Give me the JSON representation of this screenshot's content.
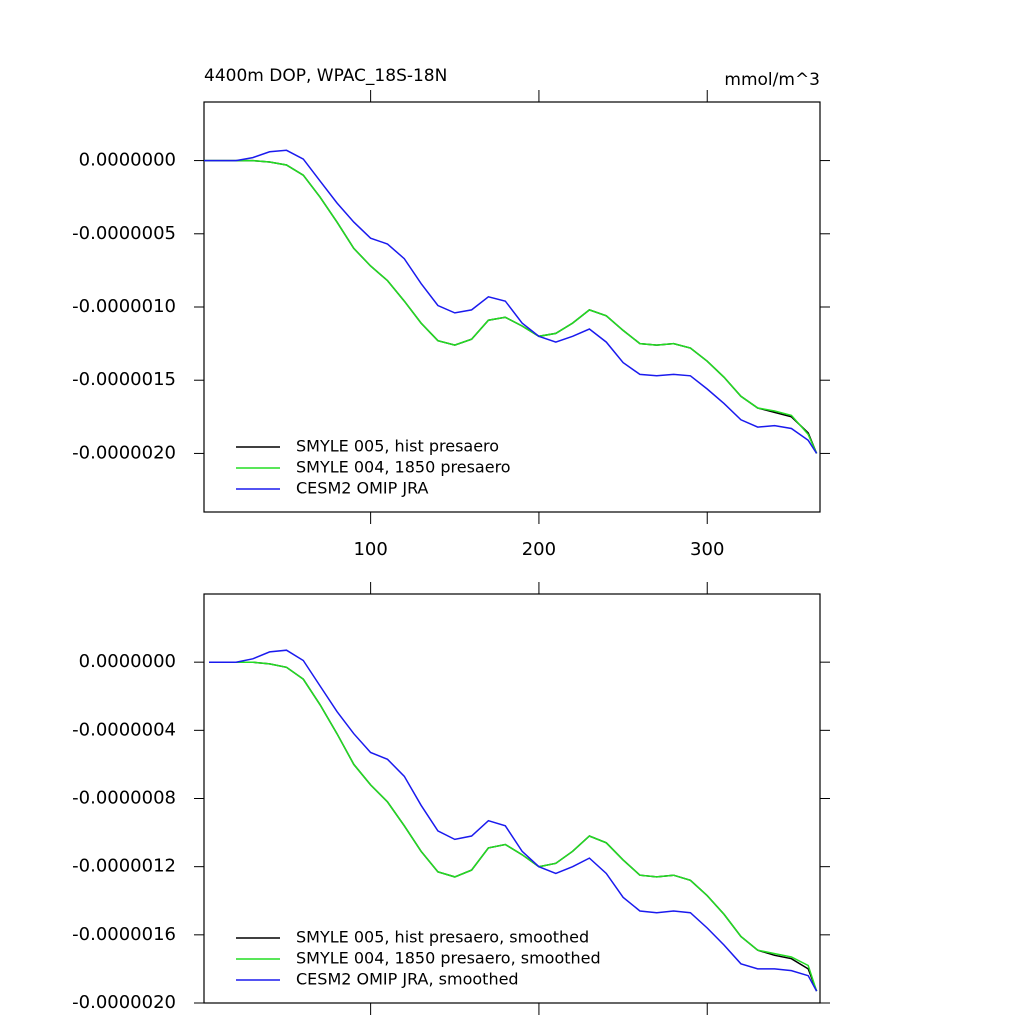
{
  "chart_data": [
    {
      "type": "line",
      "title": "4400m DOP, WPAC_18S-18N",
      "unit_label": "mmol/m^3",
      "x": [
        1,
        20,
        30,
        40,
        50,
        60,
        70,
        80,
        90,
        100,
        110,
        120,
        130,
        140,
        150,
        160,
        170,
        180,
        190,
        200,
        210,
        220,
        230,
        240,
        250,
        260,
        270,
        280,
        290,
        300,
        310,
        320,
        330,
        340,
        350,
        360,
        365
      ],
      "series": [
        {
          "name": "SMYLE 005, hist presaero",
          "color": "#000000",
          "values": [
            0,
            0,
            0,
            -1e-08,
            -3e-08,
            -1e-07,
            -2.5e-07,
            -4.2e-07,
            -6e-07,
            -7.2e-07,
            -8.2e-07,
            -9.6e-07,
            -1.11e-06,
            -1.23e-06,
            -1.26e-06,
            -1.22e-06,
            -1.09e-06,
            -1.07e-06,
            -1.13e-06,
            -1.2e-06,
            -1.18e-06,
            -1.11e-06,
            -1.02e-06,
            -1.06e-06,
            -1.16e-06,
            -1.25e-06,
            -1.26e-06,
            -1.25e-06,
            -1.28e-06,
            -1.37e-06,
            -1.48e-06,
            -1.61e-06,
            -1.69e-06,
            -1.72e-06,
            -1.75e-06,
            -1.86e-06,
            -2e-06
          ]
        },
        {
          "name": "SMYLE 004, 1850 presaero",
          "color": "#22dd22",
          "values": [
            0,
            0,
            0,
            -1e-08,
            -3e-08,
            -1e-07,
            -2.5e-07,
            -4.2e-07,
            -6e-07,
            -7.2e-07,
            -8.2e-07,
            -9.6e-07,
            -1.11e-06,
            -1.23e-06,
            -1.26e-06,
            -1.22e-06,
            -1.09e-06,
            -1.07e-06,
            -1.13e-06,
            -1.2e-06,
            -1.18e-06,
            -1.11e-06,
            -1.02e-06,
            -1.06e-06,
            -1.16e-06,
            -1.25e-06,
            -1.26e-06,
            -1.25e-06,
            -1.28e-06,
            -1.37e-06,
            -1.48e-06,
            -1.61e-06,
            -1.69e-06,
            -1.71e-06,
            -1.74e-06,
            -1.87e-06,
            -2e-06
          ]
        },
        {
          "name": "CESM2 OMIP JRA",
          "color": "#1a1aee",
          "values": [
            0,
            0,
            2e-08,
            6e-08,
            7e-08,
            1e-08,
            -1.4e-07,
            -2.9e-07,
            -4.2e-07,
            -5.3e-07,
            -5.7e-07,
            -6.7e-07,
            -8.4e-07,
            -9.9e-07,
            -1.04e-06,
            -1.02e-06,
            -9.3e-07,
            -9.6e-07,
            -1.11e-06,
            -1.2e-06,
            -1.24e-06,
            -1.2e-06,
            -1.15e-06,
            -1.24e-06,
            -1.38e-06,
            -1.46e-06,
            -1.47e-06,
            -1.46e-06,
            -1.47e-06,
            -1.56e-06,
            -1.66e-06,
            -1.77e-06,
            -1.82e-06,
            -1.81e-06,
            -1.83e-06,
            -1.91e-06,
            -2e-06
          ]
        }
      ],
      "xlim": [
        1,
        367
      ],
      "xticks": [
        100,
        200,
        300
      ],
      "ylim": [
        -2.4e-06,
        4e-07
      ],
      "yticks": [
        {
          "value": 0,
          "label": "0.0000000"
        },
        {
          "value": -5e-07,
          "label": "-0.0000005"
        },
        {
          "value": -1e-06,
          "label": "-0.0000010"
        },
        {
          "value": -1.5e-06,
          "label": "-0.0000015"
        },
        {
          "value": -2e-06,
          "label": "-0.0000020"
        }
      ],
      "legend": "lower left"
    },
    {
      "type": "line",
      "x": [
        4,
        20,
        30,
        40,
        50,
        60,
        70,
        80,
        90,
        100,
        110,
        120,
        130,
        140,
        150,
        160,
        170,
        180,
        190,
        200,
        210,
        220,
        230,
        240,
        250,
        260,
        270,
        280,
        290,
        300,
        310,
        320,
        330,
        340,
        350,
        360,
        365
      ],
      "series": [
        {
          "name": "SMYLE 005, hist presaero, smoothed",
          "color": "#000000",
          "values": [
            0,
            0,
            0,
            -1e-08,
            -3e-08,
            -1e-07,
            -2.5e-07,
            -4.2e-07,
            -6e-07,
            -7.2e-07,
            -8.2e-07,
            -9.6e-07,
            -1.11e-06,
            -1.23e-06,
            -1.26e-06,
            -1.22e-06,
            -1.09e-06,
            -1.07e-06,
            -1.13e-06,
            -1.2e-06,
            -1.18e-06,
            -1.11e-06,
            -1.02e-06,
            -1.06e-06,
            -1.16e-06,
            -1.25e-06,
            -1.26e-06,
            -1.25e-06,
            -1.28e-06,
            -1.37e-06,
            -1.48e-06,
            -1.61e-06,
            -1.69e-06,
            -1.72e-06,
            -1.74e-06,
            -1.8e-06,
            -1.93e-06
          ]
        },
        {
          "name": "SMYLE 004, 1850 presaero, smoothed",
          "color": "#22dd22",
          "values": [
            0,
            0,
            0,
            -1e-08,
            -3e-08,
            -1e-07,
            -2.5e-07,
            -4.2e-07,
            -6e-07,
            -7.2e-07,
            -8.2e-07,
            -9.6e-07,
            -1.11e-06,
            -1.23e-06,
            -1.26e-06,
            -1.22e-06,
            -1.09e-06,
            -1.07e-06,
            -1.13e-06,
            -1.2e-06,
            -1.18e-06,
            -1.11e-06,
            -1.02e-06,
            -1.06e-06,
            -1.16e-06,
            -1.25e-06,
            -1.26e-06,
            -1.25e-06,
            -1.28e-06,
            -1.37e-06,
            -1.48e-06,
            -1.61e-06,
            -1.69e-06,
            -1.71e-06,
            -1.73e-06,
            -1.78e-06,
            -1.93e-06
          ]
        },
        {
          "name": "CESM2 OMIP JRA, smoothed",
          "color": "#1a1aee",
          "values": [
            0,
            0,
            2e-08,
            6e-08,
            7e-08,
            1e-08,
            -1.4e-07,
            -2.9e-07,
            -4.2e-07,
            -5.3e-07,
            -5.7e-07,
            -6.7e-07,
            -8.4e-07,
            -9.9e-07,
            -1.04e-06,
            -1.02e-06,
            -9.3e-07,
            -9.6e-07,
            -1.11e-06,
            -1.2e-06,
            -1.24e-06,
            -1.2e-06,
            -1.15e-06,
            -1.24e-06,
            -1.38e-06,
            -1.46e-06,
            -1.47e-06,
            -1.46e-06,
            -1.47e-06,
            -1.56e-06,
            -1.66e-06,
            -1.77e-06,
            -1.8e-06,
            -1.8e-06,
            -1.81e-06,
            -1.84e-06,
            -1.93e-06
          ]
        }
      ],
      "xlim": [
        1,
        367
      ],
      "xticks": [
        100,
        200,
        300
      ],
      "ylim": [
        -2e-06,
        4e-07
      ],
      "yticks": [
        {
          "value": 0,
          "label": "0.0000000"
        },
        {
          "value": -4e-07,
          "label": "-0.0000004"
        },
        {
          "value": -8e-07,
          "label": "-0.0000008"
        },
        {
          "value": -1.2e-06,
          "label": "-0.0000012"
        },
        {
          "value": -1.6e-06,
          "label": "-0.0000016"
        },
        {
          "value": -2e-06,
          "label": "-0.0000020"
        }
      ],
      "legend": "lower left"
    }
  ]
}
